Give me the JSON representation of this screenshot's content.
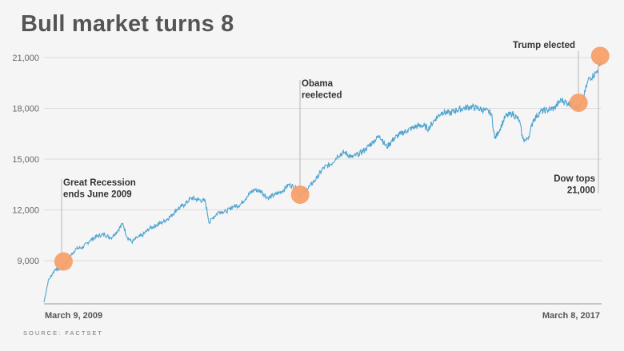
{
  "title": "Bull market turns 8",
  "source": "SOURCE: FACTSET",
  "chart_data": {
    "type": "line",
    "title": "Bull market turns 8",
    "xlabel": "",
    "ylabel": "",
    "x_start": "March 9, 2009",
    "x_end": "March 8, 2017",
    "ylim": [
      6000,
      22000
    ],
    "yticks": [
      9000,
      12000,
      15000,
      18000,
      21000
    ],
    "ytick_labels": [
      "9,000",
      "12,000",
      "15,000",
      "18,000",
      "21,000"
    ],
    "grid": true,
    "line_color": "#4fa3cf",
    "marker_color": "#f5a06b",
    "series": [
      {
        "x": [
          2009.19,
          2009.25,
          2009.35,
          2009.45,
          2009.55,
          2009.65,
          2009.75,
          2009.85,
          2009.95,
          2010.05,
          2010.15,
          2010.25,
          2010.32,
          2010.38,
          2010.45,
          2010.52,
          2010.6,
          2010.7,
          2010.8,
          2010.9,
          2011.0,
          2011.1,
          2011.2,
          2011.3,
          2011.4,
          2011.5,
          2011.56,
          2011.6,
          2011.7,
          2011.8,
          2011.9,
          2012.0,
          2012.1,
          2012.2,
          2012.3,
          2012.4,
          2012.5,
          2012.6,
          2012.7,
          2012.8,
          2012.86,
          2012.9,
          2013.0,
          2013.1,
          2013.2,
          2013.3,
          2013.4,
          2013.5,
          2013.6,
          2013.7,
          2013.8,
          2013.9,
          2014.0,
          2014.1,
          2014.2,
          2014.3,
          2014.4,
          2014.5,
          2014.6,
          2014.7,
          2014.8,
          2014.9,
          2015.0,
          2015.1,
          2015.2,
          2015.3,
          2015.4,
          2015.5,
          2015.6,
          2015.65,
          2015.7,
          2015.8,
          2015.9,
          2016.0,
          2016.05,
          2016.1,
          2016.15,
          2016.2,
          2016.3,
          2016.4,
          2016.5,
          2016.6,
          2016.7,
          2016.8,
          2016.85,
          2016.9,
          2016.95,
          2017.0,
          2017.05,
          2017.1,
          2017.15,
          2017.18
        ],
        "y": [
          6550,
          7800,
          8500,
          8500,
          9200,
          9700,
          9800,
          10200,
          10450,
          10550,
          10350,
          10800,
          11200,
          10400,
          10100,
          10350,
          10500,
          10900,
          11100,
          11300,
          11600,
          12050,
          12300,
          12700,
          12600,
          12500,
          11200,
          11500,
          11900,
          11900,
          12200,
          12300,
          12800,
          13200,
          13100,
          12700,
          12900,
          13100,
          13500,
          13300,
          12800,
          13000,
          13400,
          13900,
          14500,
          14700,
          15200,
          15400,
          15100,
          15300,
          15600,
          16000,
          16400,
          15700,
          16200,
          16500,
          16700,
          16900,
          17000,
          16800,
          17400,
          17800,
          17700,
          17900,
          18000,
          18100,
          18000,
          17900,
          17700,
          16200,
          16600,
          17500,
          17700,
          17300,
          16200,
          16100,
          16500,
          17300,
          17800,
          17900,
          18000,
          18500,
          18300,
          18200,
          18000,
          18300,
          19100,
          19800,
          19900,
          20100,
          20500,
          21000
        ]
      }
    ],
    "annotations": [
      {
        "text": [
          "Great Recession",
          "ends June 2009"
        ],
        "x": 2009.47,
        "y": 8950,
        "label_pos": "above"
      },
      {
        "text": [
          "Obama",
          "reelected"
        ],
        "x": 2012.86,
        "y": 12900,
        "label_pos": "above"
      },
      {
        "text": [
          "Trump elected"
        ],
        "x": 2016.85,
        "y": 18330,
        "label_pos": "above"
      },
      {
        "text": [
          "Dow tops",
          "21,000"
        ],
        "x": 2017.16,
        "y": 21100,
        "label_pos": "below"
      }
    ]
  }
}
